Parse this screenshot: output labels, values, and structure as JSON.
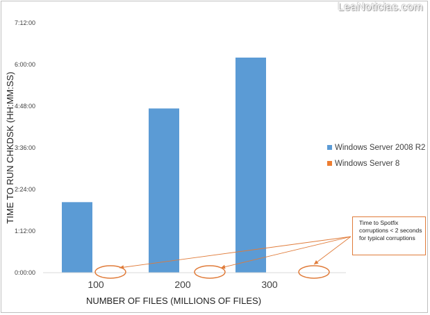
{
  "watermark": "LeaNoticias.com",
  "chart_data": {
    "type": "bar",
    "categories": [
      "100",
      "200",
      "300"
    ],
    "series": [
      {
        "name": "Windows Server 2008 R2",
        "color": "#5b9bd5",
        "values": [
          "2:02:00",
          "4:44:00",
          "6:12:00"
        ]
      },
      {
        "name": "Windows Server 8",
        "color": "#ed7d31",
        "values": [
          "0:00:00",
          "0:00:00",
          "0:00:00"
        ]
      }
    ],
    "xlabel": "NUMBER OF FILES (MILLIONS OF FILES)",
    "ylabel": "TIME TO RUN CHKDSK (HH:MM:SS)",
    "ylim": [
      "0:00:00",
      "7:12:00"
    ],
    "yticks": [
      "0:00:00",
      "1:12:00",
      "2:24:00",
      "3:36:00",
      "4:48:00",
      "6:00:00",
      "7:12:00"
    ],
    "legend_position": "right",
    "grid": false,
    "annotation": {
      "lines": [
        "Time to Spotfix",
        "corruptions < 2 seconds",
        "for typical corruptions"
      ],
      "color": "#e07b39"
    }
  }
}
